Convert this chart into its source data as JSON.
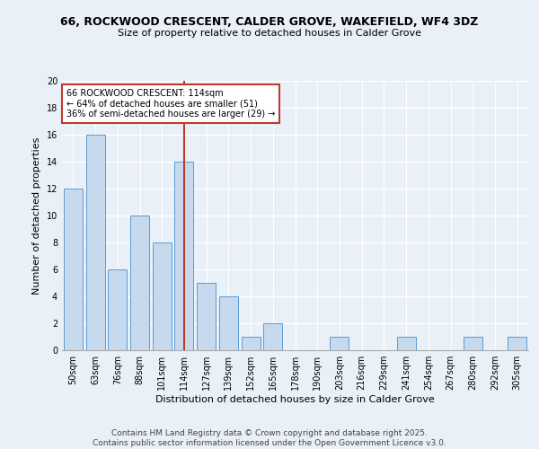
{
  "title_line1": "66, ROCKWOOD CRESCENT, CALDER GROVE, WAKEFIELD, WF4 3DZ",
  "title_line2": "Size of property relative to detached houses in Calder Grove",
  "xlabel": "Distribution of detached houses by size in Calder Grove",
  "ylabel": "Number of detached properties",
  "categories": [
    "50sqm",
    "63sqm",
    "76sqm",
    "88sqm",
    "101sqm",
    "114sqm",
    "127sqm",
    "139sqm",
    "152sqm",
    "165sqm",
    "178sqm",
    "190sqm",
    "203sqm",
    "216sqm",
    "229sqm",
    "241sqm",
    "254sqm",
    "267sqm",
    "280sqm",
    "292sqm",
    "305sqm"
  ],
  "values": [
    12,
    16,
    6,
    10,
    8,
    14,
    5,
    4,
    1,
    2,
    0,
    0,
    1,
    0,
    0,
    1,
    0,
    0,
    1,
    0,
    1
  ],
  "bar_color": "#c7d9ed",
  "bar_edge_color": "#5b9bd5",
  "highlight_index": 5,
  "highlight_line_color": "#c0392b",
  "annotation_text": "66 ROCKWOOD CRESCENT: 114sqm\n← 64% of detached houses are smaller (51)\n36% of semi-detached houses are larger (29) →",
  "annotation_box_color": "#ffffff",
  "annotation_box_edge": "#c0392b",
  "ylim": [
    0,
    20
  ],
  "yticks": [
    0,
    2,
    4,
    6,
    8,
    10,
    12,
    14,
    16,
    18,
    20
  ],
  "footer_text": "Contains HM Land Registry data © Crown copyright and database right 2025.\nContains public sector information licensed under the Open Government Licence v3.0.",
  "bg_color": "#eaf0f8",
  "grid_color": "#ffffff",
  "title_fontsize": 9,
  "subtitle_fontsize": 8,
  "axis_label_fontsize": 8,
  "tick_fontsize": 7,
  "annotation_fontsize": 7,
  "footer_fontsize": 6.5
}
